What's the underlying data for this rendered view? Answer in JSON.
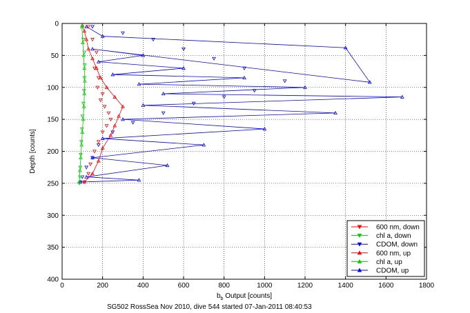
{
  "chart_data": {
    "type": "line",
    "caption": "SG502 RossSea Nov 2010, dive 544 started 07-Jan-2011 08:40:53",
    "xlabel_main": "b",
    "xlabel_sub": "b",
    "xlabel_rest": " Output [counts]",
    "ylabel": "Depth [counts]",
    "xlim": [
      0,
      1800
    ],
    "ylim": [
      0,
      400
    ],
    "y_reversed": true,
    "grid": true,
    "xticks": [
      0,
      200,
      400,
      600,
      800,
      1000,
      1200,
      1400,
      1600,
      1800
    ],
    "yticks": [
      0,
      50,
      100,
      150,
      200,
      250,
      300,
      350,
      400
    ],
    "legend_position": "bottom-right",
    "colors": {
      "red": "#ff0000",
      "green": "#00cc00",
      "blue": "#0000ff"
    },
    "series": [
      {
        "name": "600 nm, down",
        "color": "#ff0000",
        "marker": "triangle-down",
        "line": false,
        "x": [
          130,
          150,
          170,
          160,
          180,
          175,
          200,
          190,
          210,
          230,
          240,
          220,
          200,
          180,
          160,
          140,
          130,
          110
        ],
        "y": [
          5,
          25,
          45,
          70,
          85,
          100,
          110,
          120,
          130,
          140,
          150,
          160,
          170,
          185,
          200,
          220,
          235,
          248
        ]
      },
      {
        "name": "chl a, down",
        "color": "#00cc00",
        "marker": "triangle-down",
        "line": false,
        "x": [
          100,
          105,
          110,
          112,
          110,
          108,
          105,
          100,
          98,
          95,
          92,
          90,
          88,
          85
        ],
        "y": [
          5,
          25,
          45,
          65,
          85,
          105,
          125,
          145,
          165,
          185,
          205,
          225,
          240,
          250
        ]
      },
      {
        "name": "CDOM, down",
        "color": "#0000ff",
        "marker": "triangle-down",
        "line": false,
        "x": [
          150,
          300,
          450,
          600,
          750,
          900,
          1100,
          950,
          800,
          650,
          500,
          350,
          250,
          180,
          150,
          120,
          100,
          90
        ],
        "y": [
          5,
          15,
          25,
          40,
          55,
          70,
          90,
          105,
          115,
          125,
          140,
          155,
          170,
          190,
          210,
          225,
          240,
          248
        ]
      },
      {
        "name": "600 nm, up",
        "color": "#ff0000",
        "marker": "triangle-up",
        "line": true,
        "x": [
          110,
          150,
          180,
          200,
          240,
          260,
          280,
          300,
          260,
          220,
          190,
          170,
          150,
          130,
          120,
          110,
          100
        ],
        "y": [
          248,
          235,
          215,
          195,
          175,
          160,
          145,
          130,
          115,
          100,
          85,
          70,
          55,
          40,
          25,
          12,
          3
        ]
      },
      {
        "name": "chl a, up",
        "color": "#00cc00",
        "marker": "triangle-up",
        "line": true,
        "x": [
          85,
          88,
          92,
          96,
          100,
          104,
          108,
          110,
          112,
          110,
          106,
          102,
          98
        ],
        "y": [
          248,
          230,
          210,
          190,
          170,
          150,
          130,
          110,
          90,
          70,
          50,
          30,
          5
        ]
      },
      {
        "name": "CDOM, up",
        "color": "#0000ff",
        "marker": "triangle-up",
        "line": true,
        "x": [
          90,
          380,
          120,
          520,
          150,
          700,
          200,
          1000,
          300,
          1350,
          400,
          1680,
          500,
          1200,
          380,
          900,
          250,
          600,
          180,
          400,
          150,
          1520,
          1400,
          200,
          120
        ],
        "y": [
          248,
          245,
          240,
          222,
          210,
          190,
          180,
          165,
          150,
          140,
          128,
          115,
          110,
          100,
          95,
          85,
          80,
          70,
          60,
          50,
          40,
          92,
          38,
          20,
          5
        ]
      }
    ]
  }
}
